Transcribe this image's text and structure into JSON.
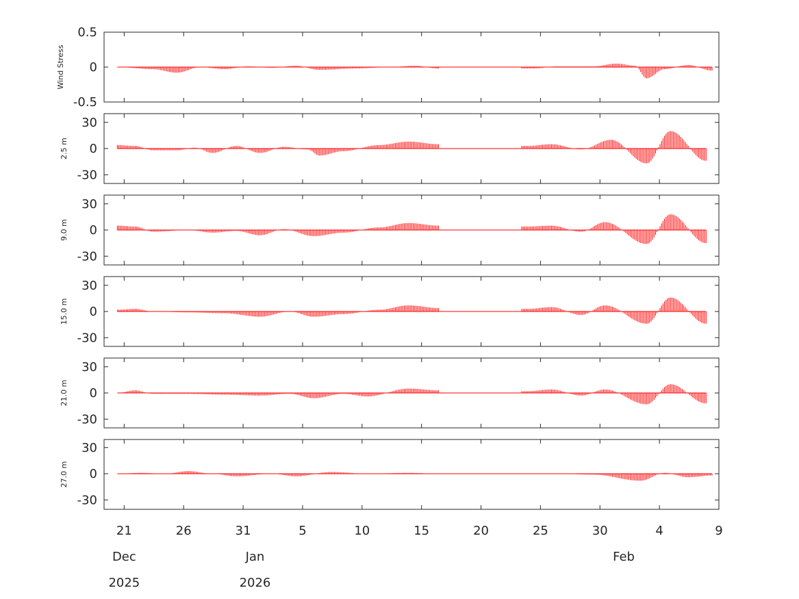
{
  "chart_data": {
    "type": "stick_timeseries",
    "time_axis": {
      "start": "2025-12-20",
      "end": "2026-02-09",
      "ticks": [
        {
          "date": "2025-12-21",
          "label": "21"
        },
        {
          "date": "2025-12-26",
          "label": "26"
        },
        {
          "date": "2025-12-31",
          "label": "31"
        },
        {
          "date": "2026-01-05",
          "label": "5"
        },
        {
          "date": "2026-01-10",
          "label": "10"
        },
        {
          "date": "2026-01-15",
          "label": "15"
        },
        {
          "date": "2026-01-20",
          "label": "20"
        },
        {
          "date": "2026-01-25",
          "label": "25"
        },
        {
          "date": "2026-01-30",
          "label": "30"
        },
        {
          "date": "2026-02-04",
          "label": "4"
        },
        {
          "date": "2026-02-09",
          "label": "9"
        }
      ],
      "month_labels": [
        {
          "date": "2025-12-21",
          "label": "Dec"
        },
        {
          "date": "2026-01-01",
          "label": "Jan"
        },
        {
          "date": "2026-02-01",
          "label": "Feb"
        }
      ],
      "year_labels": [
        {
          "date": "2025-12-21",
          "label": "2025"
        },
        {
          "date": "2026-01-01",
          "label": "2026"
        }
      ],
      "data_gap": [
        "2026-01-17",
        "2026-01-24"
      ]
    },
    "stick_color": "#ff0000",
    "panels": [
      {
        "ylabel": "Wind Stress",
        "ylim": [
          -0.5,
          0.5
        ],
        "yticks": [
          0.5,
          0,
          -0.5
        ],
        "ytick_labels": [
          "0.5",
          "0",
          "-0.5"
        ],
        "series": [
          {
            "day": 0.0,
            "v": 0.0
          },
          {
            "day": 3.0,
            "v": -0.03
          },
          {
            "day": 5.0,
            "v": -0.08
          },
          {
            "day": 7.0,
            "v": 0.0
          },
          {
            "day": 9.0,
            "v": -0.03
          },
          {
            "day": 11.0,
            "v": 0.01
          },
          {
            "day": 13.0,
            "v": -0.01
          },
          {
            "day": 15.0,
            "v": 0.02
          },
          {
            "day": 17.0,
            "v": -0.04
          },
          {
            "day": 20.0,
            "v": -0.02
          },
          {
            "day": 23.0,
            "v": 0.0
          },
          {
            "day": 25.0,
            "v": 0.02
          },
          {
            "day": 27.0,
            "v": -0.02
          },
          {
            "day": 35.0,
            "v": -0.02
          },
          {
            "day": 37.0,
            "v": 0.01
          },
          {
            "day": 40.0,
            "v": 0.01
          },
          {
            "day": 42.0,
            "v": 0.05
          },
          {
            "day": 43.5,
            "v": 0.02
          },
          {
            "day": 44.5,
            "v": -0.16
          },
          {
            "day": 46.0,
            "v": -0.03
          },
          {
            "day": 48.0,
            "v": 0.03
          },
          {
            "day": 50.0,
            "v": -0.05
          }
        ]
      },
      {
        "ylabel": "2.5 m",
        "ylim": [
          -40,
          40
        ],
        "yticks": [
          30,
          0,
          -30
        ],
        "ytick_labels": [
          "30",
          "0",
          "-30"
        ],
        "series": [
          {
            "day": 0.0,
            "v": 4
          },
          {
            "day": 1.5,
            "v": 3
          },
          {
            "day": 3.0,
            "v": -2
          },
          {
            "day": 5.0,
            "v": -2
          },
          {
            "day": 6.5,
            "v": 1
          },
          {
            "day": 8.0,
            "v": -5
          },
          {
            "day": 10.0,
            "v": 3
          },
          {
            "day": 12.0,
            "v": -5
          },
          {
            "day": 14.0,
            "v": 2
          },
          {
            "day": 16.0,
            "v": -1
          },
          {
            "day": 17.0,
            "v": -8
          },
          {
            "day": 19.0,
            "v": -3
          },
          {
            "day": 22.0,
            "v": 4
          },
          {
            "day": 24.5,
            "v": 8
          },
          {
            "day": 27.0,
            "v": 5
          },
          {
            "day": 34.5,
            "v": 3
          },
          {
            "day": 36.5,
            "v": 5
          },
          {
            "day": 39.0,
            "v": -1
          },
          {
            "day": 41.5,
            "v": 10
          },
          {
            "day": 44.5,
            "v": -17
          },
          {
            "day": 46.5,
            "v": 20
          },
          {
            "day": 49.5,
            "v": -14
          }
        ]
      },
      {
        "ylabel": "9.0 m",
        "ylim": [
          -40,
          40
        ],
        "yticks": [
          30,
          0,
          -30
        ],
        "ytick_labels": [
          "30",
          "0",
          "-30"
        ],
        "series": [
          {
            "day": 0.0,
            "v": 5
          },
          {
            "day": 1.5,
            "v": 4
          },
          {
            "day": 3.0,
            "v": -2
          },
          {
            "day": 6.0,
            "v": 0
          },
          {
            "day": 8.0,
            "v": -3
          },
          {
            "day": 10.0,
            "v": -1
          },
          {
            "day": 12.0,
            "v": -6
          },
          {
            "day": 14.0,
            "v": 1
          },
          {
            "day": 16.5,
            "v": -7
          },
          {
            "day": 19.0,
            "v": -3
          },
          {
            "day": 22.0,
            "v": 3
          },
          {
            "day": 24.5,
            "v": 8
          },
          {
            "day": 27.0,
            "v": 5
          },
          {
            "day": 34.5,
            "v": 4
          },
          {
            "day": 36.5,
            "v": 5
          },
          {
            "day": 39.0,
            "v": -2
          },
          {
            "day": 41.0,
            "v": 9
          },
          {
            "day": 44.5,
            "v": -16
          },
          {
            "day": 46.5,
            "v": 18
          },
          {
            "day": 49.5,
            "v": -15
          }
        ]
      },
      {
        "ylabel": "15.0 m",
        "ylim": [
          -40,
          40
        ],
        "yticks": [
          30,
          0,
          -30
        ],
        "ytick_labels": [
          "30",
          "0",
          "-30"
        ],
        "series": [
          {
            "day": 0.0,
            "v": 2
          },
          {
            "day": 1.5,
            "v": 3
          },
          {
            "day": 3.0,
            "v": 0
          },
          {
            "day": 6.0,
            "v": -1
          },
          {
            "day": 9.0,
            "v": -2
          },
          {
            "day": 12.0,
            "v": -6
          },
          {
            "day": 14.5,
            "v": 0
          },
          {
            "day": 16.5,
            "v": -6
          },
          {
            "day": 19.0,
            "v": -3
          },
          {
            "day": 22.0,
            "v": 2
          },
          {
            "day": 24.5,
            "v": 7
          },
          {
            "day": 27.0,
            "v": 4
          },
          {
            "day": 34.5,
            "v": 3
          },
          {
            "day": 36.5,
            "v": 5
          },
          {
            "day": 39.0,
            "v": -4
          },
          {
            "day": 41.0,
            "v": 7
          },
          {
            "day": 44.5,
            "v": -14
          },
          {
            "day": 46.5,
            "v": 16
          },
          {
            "day": 49.5,
            "v": -14
          }
        ]
      },
      {
        "ylabel": "21.0 m",
        "ylim": [
          -40,
          40
        ],
        "yticks": [
          30,
          0,
          -30
        ],
        "ytick_labels": [
          "30",
          "0",
          "-30"
        ],
        "series": [
          {
            "day": 0.0,
            "v": 0
          },
          {
            "day": 1.5,
            "v": 3
          },
          {
            "day": 3.0,
            "v": -1
          },
          {
            "day": 6.0,
            "v": -1
          },
          {
            "day": 9.0,
            "v": -2
          },
          {
            "day": 12.0,
            "v": -3
          },
          {
            "day": 14.5,
            "v": -1
          },
          {
            "day": 16.5,
            "v": -6
          },
          {
            "day": 19.0,
            "v": -1
          },
          {
            "day": 21.0,
            "v": -4
          },
          {
            "day": 24.5,
            "v": 5
          },
          {
            "day": 27.0,
            "v": 3
          },
          {
            "day": 34.5,
            "v": 2
          },
          {
            "day": 36.5,
            "v": 4
          },
          {
            "day": 39.0,
            "v": -3
          },
          {
            "day": 41.0,
            "v": 4
          },
          {
            "day": 44.5,
            "v": -13
          },
          {
            "day": 46.5,
            "v": 10
          },
          {
            "day": 49.5,
            "v": -12
          }
        ]
      },
      {
        "ylabel": "27.0 m",
        "ylim": [
          -40,
          40
        ],
        "yticks": [
          30,
          0,
          -30
        ],
        "ytick_labels": [
          "30",
          "0",
          "-30"
        ],
        "series": [
          {
            "day": 0.0,
            "v": 0
          },
          {
            "day": 2.0,
            "v": 1
          },
          {
            "day": 4.0,
            "v": 0
          },
          {
            "day": 6.0,
            "v": 3
          },
          {
            "day": 8.0,
            "v": 0
          },
          {
            "day": 10.0,
            "v": -3
          },
          {
            "day": 13.0,
            "v": 0
          },
          {
            "day": 15.0,
            "v": -3
          },
          {
            "day": 18.0,
            "v": 2
          },
          {
            "day": 21.0,
            "v": 0
          },
          {
            "day": 24.5,
            "v": 1
          },
          {
            "day": 27.0,
            "v": 0
          },
          {
            "day": 34.5,
            "v": 0
          },
          {
            "day": 37.0,
            "v": 0
          },
          {
            "day": 40.0,
            "v": -1
          },
          {
            "day": 44.0,
            "v": -8
          },
          {
            "day": 46.0,
            "v": 1
          },
          {
            "day": 48.0,
            "v": -4
          },
          {
            "day": 50.0,
            "v": -2
          }
        ]
      }
    ]
  }
}
